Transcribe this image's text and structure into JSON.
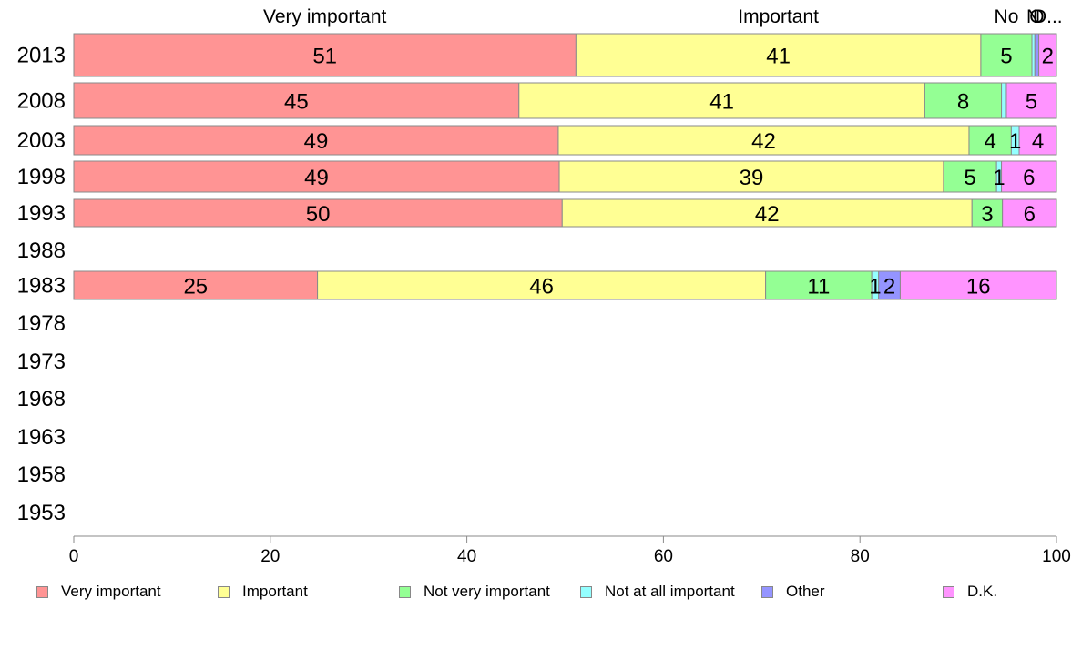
{
  "chart_data": {
    "type": "bar",
    "orientation": "horizontal",
    "stacked": true,
    "categories": [
      "2013",
      "2008",
      "2003",
      "1998",
      "1993",
      "1988",
      "1983",
      "1978",
      "1973",
      "1968",
      "1963",
      "1958",
      "1953"
    ],
    "series": [
      {
        "name": "Very important",
        "color": "#FF9494",
        "values": [
          51.1,
          45.3,
          49.3,
          49.4,
          49.7,
          null,
          24.8,
          null,
          null,
          null,
          null,
          null,
          null
        ]
      },
      {
        "name": "Important",
        "color": "#FFFF94",
        "values": [
          41.2,
          41.3,
          41.8,
          39.1,
          41.7,
          null,
          45.6,
          null,
          null,
          null,
          null,
          null,
          null
        ]
      },
      {
        "name": "Not very important",
        "color": "#94FF94",
        "values": [
          5.2,
          7.8,
          4.3,
          5.4,
          3.1,
          null,
          10.8,
          null,
          null,
          null,
          null,
          null,
          null
        ]
      },
      {
        "name": "Not at all important",
        "color": "#94FFFF",
        "values": [
          0.3,
          0.5,
          0.8,
          0.5,
          0.0,
          null,
          0.7,
          null,
          null,
          null,
          null,
          null,
          null
        ]
      },
      {
        "name": "Other",
        "color": "#9494FF",
        "values": [
          0.4,
          0.0,
          0.0,
          0.0,
          0.0,
          null,
          2.2,
          null,
          null,
          null,
          null,
          null,
          null
        ]
      },
      {
        "name": "D.K.",
        "color": "#FF94FF",
        "values": [
          1.8,
          5.1,
          3.8,
          5.6,
          5.5,
          null,
          15.9,
          null,
          null,
          null,
          null,
          null,
          null
        ]
      }
    ],
    "bar_labels": [
      [
        "51",
        "41",
        "5",
        "",
        "",
        "2"
      ],
      [
        "45",
        "41",
        "8",
        "",
        "",
        "5"
      ],
      [
        "49",
        "42",
        "4",
        "1",
        "",
        "4"
      ],
      [
        "49",
        "39",
        "5",
        "1",
        "",
        "6"
      ],
      [
        "50",
        "42",
        "3",
        "",
        "",
        "6"
      ],
      [
        "",
        "",
        "",
        "",
        "",
        ""
      ],
      [
        "25",
        "46",
        "11",
        "1",
        "2",
        "16"
      ],
      [
        "",
        "",
        "",
        "",
        "",
        ""
      ],
      [
        "",
        "",
        "",
        "",
        "",
        ""
      ],
      [
        "",
        "",
        "",
        "",
        "",
        ""
      ],
      [
        "",
        "",
        "",
        "",
        "",
        ""
      ],
      [
        "",
        "",
        "",
        "",
        "",
        ""
      ],
      [
        "",
        "",
        "",
        "",
        "",
        ""
      ]
    ],
    "top_labels": [
      "Very important",
      "Important",
      "No",
      "N",
      "O",
      "D..."
    ],
    "xlim": [
      0,
      100
    ],
    "x_ticks": [
      "0",
      "20",
      "40",
      "60",
      "80",
      "100"
    ],
    "xlabel": "",
    "ylabel": "",
    "grid": false,
    "legend_position": "bottom"
  }
}
